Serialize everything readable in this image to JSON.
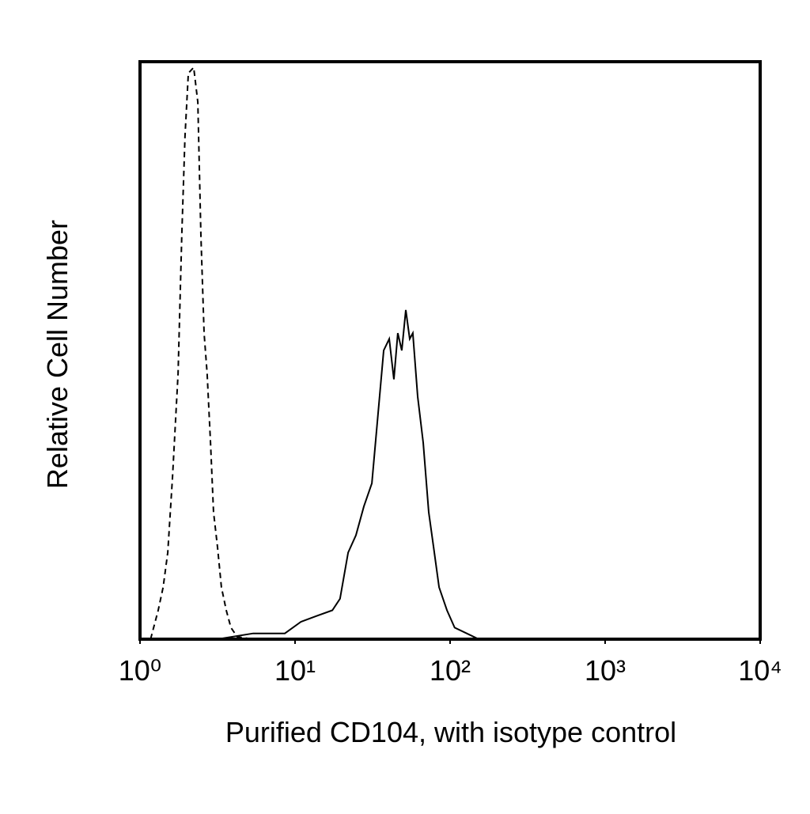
{
  "chart_data": {
    "type": "line",
    "xlabel": "Purified CD104, with isotype control",
    "ylabel": "Relative Cell Number",
    "xscale": "log",
    "xlim": [
      1,
      10000
    ],
    "xticks": [
      {
        "value": 1,
        "label": "10⁰"
      },
      {
        "value": 10,
        "label": "10¹"
      },
      {
        "value": 100,
        "label": "10²"
      },
      {
        "value": 1000,
        "label": "10³"
      },
      {
        "value": 10000,
        "label": "10⁴"
      }
    ],
    "ylim": [
      0,
      100
    ],
    "series": [
      {
        "color": "#000000",
        "dash": true,
        "x": [
          1.17,
          1.31,
          1.41,
          1.51,
          1.62,
          1.76,
          1.86,
          1.95,
          2.05,
          2.22,
          2.36,
          2.47,
          2.59,
          2.71,
          2.85,
          2.98,
          3.16,
          3.35,
          3.6,
          3.86,
          4.24,
          5.37
        ],
        "values": [
          0,
          5,
          9,
          15,
          28,
          46,
          70,
          87,
          98,
          99,
          93,
          70,
          53,
          46,
          34,
          22,
          16,
          9,
          5,
          2,
          0.4,
          0
        ]
      },
      {
        "color": "#000000",
        "dash": false,
        "x": [
          3.16,
          5.37,
          8.59,
          10.9,
          13.7,
          17.4,
          19.5,
          22.0,
          24.7,
          27.8,
          31.3,
          34.3,
          37.3,
          40.5,
          43.4,
          46.0,
          48.8,
          51.8,
          54.9,
          57.5,
          61.8,
          67.1,
          72.8,
          78.2,
          84.9,
          95.5,
          107,
          128,
          153
        ],
        "values": [
          0,
          1,
          1,
          3,
          4,
          5,
          7,
          15,
          18,
          23,
          27,
          39,
          50,
          52,
          45,
          53,
          50,
          57,
          52,
          53,
          42,
          34,
          22,
          16,
          9,
          5,
          2,
          1,
          0
        ]
      }
    ]
  }
}
